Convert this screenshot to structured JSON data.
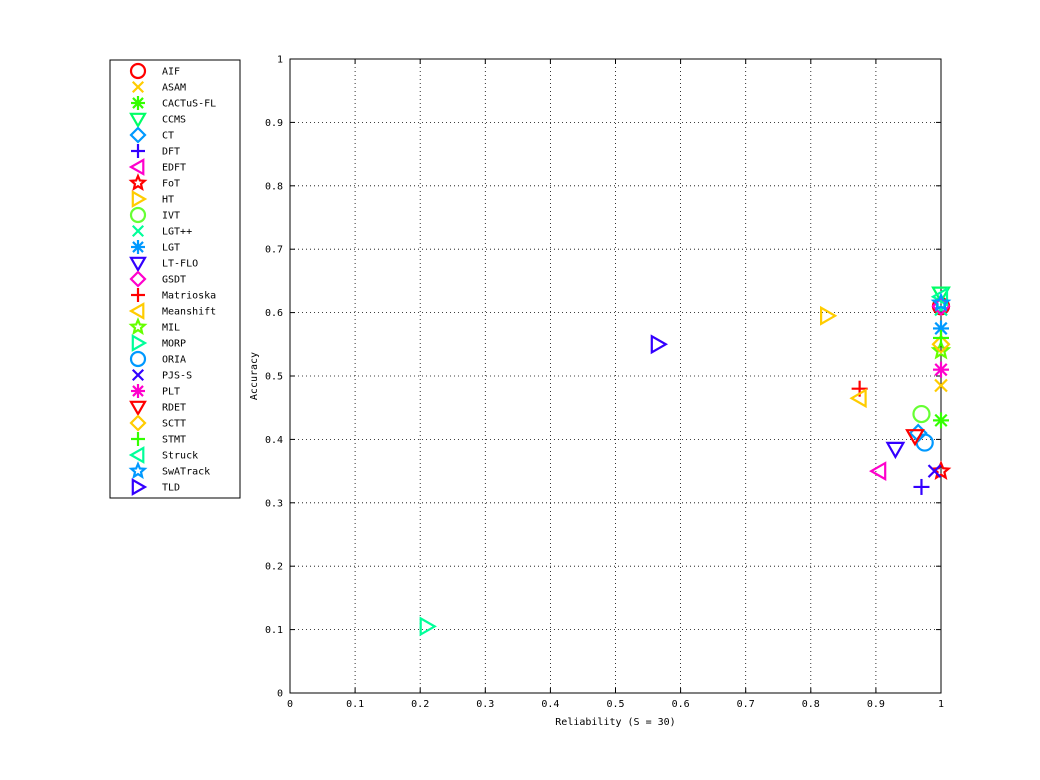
{
  "chart_data": {
    "type": "scatter",
    "xlabel": "Reliability (S = 30)",
    "ylabel": "Accuracy",
    "xlim": [
      0,
      1
    ],
    "ylim": [
      0,
      1
    ],
    "xticks": [
      "0",
      "0.1",
      "0.2",
      "0.3",
      "0.4",
      "0.5",
      "0.6",
      "0.7",
      "0.8",
      "0.9",
      "1"
    ],
    "yticks": [
      "0",
      "0.1",
      "0.2",
      "0.3",
      "0.4",
      "0.5",
      "0.6",
      "0.7",
      "0.8",
      "0.9",
      "1"
    ],
    "grid": true,
    "legend_position": "outside-left",
    "series": [
      {
        "name": "AIF",
        "marker": "circle",
        "color": "#ff0000",
        "x": 1.0,
        "y": 0.61
      },
      {
        "name": "ASAM",
        "marker": "x",
        "color": "#ffcc00",
        "x": 1.0,
        "y": 0.485
      },
      {
        "name": "CACTuS-FL",
        "marker": "asterisk",
        "color": "#33ff00",
        "x": 1.0,
        "y": 0.43
      },
      {
        "name": "CCMS",
        "marker": "triangle-down",
        "color": "#00ff66",
        "x": 1.0,
        "y": 0.63
      },
      {
        "name": "CT",
        "marker": "diamond",
        "color": "#0099ff",
        "x": 0.965,
        "y": 0.41
      },
      {
        "name": "DFT",
        "marker": "plus",
        "color": "#3300ff",
        "x": 0.97,
        "y": 0.325
      },
      {
        "name": "EDFT",
        "marker": "triangle-left",
        "color": "#ff00cc",
        "x": 0.905,
        "y": 0.35
      },
      {
        "name": "FoT",
        "marker": "star",
        "color": "#ff0000",
        "x": 1.0,
        "y": 0.35
      },
      {
        "name": "HT",
        "marker": "triangle-right",
        "color": "#ffcc00",
        "x": 0.825,
        "y": 0.595
      },
      {
        "name": "IVT",
        "marker": "circle",
        "color": "#66ff33",
        "x": 0.97,
        "y": 0.44
      },
      {
        "name": "LGT++",
        "marker": "x",
        "color": "#00ff99",
        "x": 1.0,
        "y": 0.605
      },
      {
        "name": "LGT",
        "marker": "asterisk",
        "color": "#0099ff",
        "x": 1.0,
        "y": 0.575
      },
      {
        "name": "LT-FLO",
        "marker": "triangle-down",
        "color": "#3300ff",
        "x": 0.93,
        "y": 0.385
      },
      {
        "name": "GSDT",
        "marker": "diamond",
        "color": "#ff00cc",
        "x": 1.0,
        "y": 0.61
      },
      {
        "name": "Matrioska",
        "marker": "plus",
        "color": "#ff0000",
        "x": 0.875,
        "y": 0.48
      },
      {
        "name": "Meanshift",
        "marker": "triangle-left",
        "color": "#ffcc00",
        "x": 0.875,
        "y": 0.465
      },
      {
        "name": "MIL",
        "marker": "star",
        "color": "#66ff00",
        "x": 1.0,
        "y": 0.54
      },
      {
        "name": "MORP",
        "marker": "triangle-right",
        "color": "#00ff99",
        "x": 0.21,
        "y": 0.105
      },
      {
        "name": "ORIA",
        "marker": "circle",
        "color": "#0099ff",
        "x": 0.975,
        "y": 0.395
      },
      {
        "name": "PJS-S",
        "marker": "x",
        "color": "#3300ff",
        "x": 0.99,
        "y": 0.35
      },
      {
        "name": "PLT",
        "marker": "asterisk",
        "color": "#ff00cc",
        "x": 1.0,
        "y": 0.51
      },
      {
        "name": "RDET",
        "marker": "triangle-down",
        "color": "#ff0000",
        "x": 0.96,
        "y": 0.405
      },
      {
        "name": "SCTT",
        "marker": "diamond",
        "color": "#ffcc00",
        "x": 1.0,
        "y": 0.55
      },
      {
        "name": "STMT",
        "marker": "plus",
        "color": "#33ff00",
        "x": 1.0,
        "y": 0.56
      },
      {
        "name": "Struck",
        "marker": "triangle-left",
        "color": "#00ff99",
        "x": 1.0,
        "y": 0.625
      },
      {
        "name": "SwATrack",
        "marker": "star",
        "color": "#0099ff",
        "x": 1.0,
        "y": 0.615
      },
      {
        "name": "TLD",
        "marker": "triangle-right",
        "color": "#3300ff",
        "x": 0.565,
        "y": 0.55
      }
    ]
  }
}
